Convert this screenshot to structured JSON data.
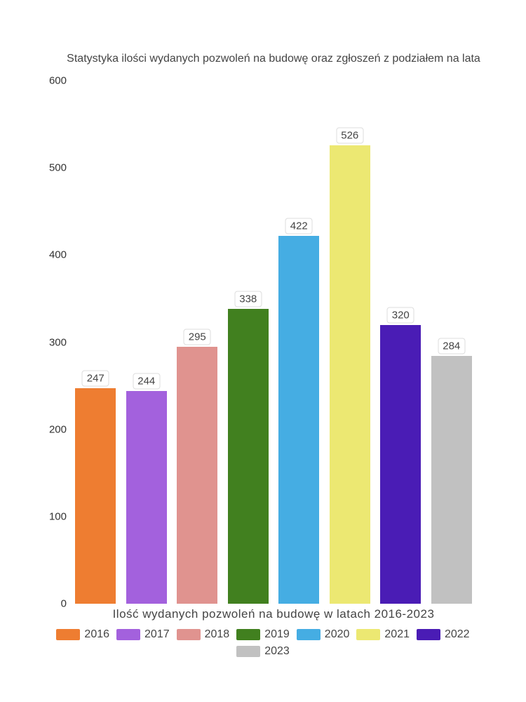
{
  "chart": {
    "type": "bar",
    "title": "Statystyka ilości wydanych pozwoleń na budowę oraz zgłoszeń z podziałem na lata",
    "x_title": "Ilość wydanych pozwoleń na budowę w latach 2016-2023",
    "ylim": [
      0,
      600
    ],
    "ytick_step": 100,
    "yticks": [
      "0",
      "100",
      "200",
      "300",
      "400",
      "500",
      "600"
    ],
    "background_color": "#ffffff",
    "text_color": "#444444",
    "axis_text_color": "#333333",
    "label_box_bg": "#ffffff",
    "label_box_border": "#dddddd",
    "title_fontsize": 16,
    "axis_fontsize": 15,
    "legend_fontsize": 16,
    "bar_gap_ratio": 0.2,
    "series": [
      {
        "year": "2016",
        "value": 247,
        "color": "#ee7d31"
      },
      {
        "year": "2017",
        "value": 244,
        "color": "#a361dd"
      },
      {
        "year": "2018",
        "value": 295,
        "color": "#e0938f"
      },
      {
        "year": "2019",
        "value": 338,
        "color": "#41801f"
      },
      {
        "year": "2020",
        "value": 422,
        "color": "#45ade3"
      },
      {
        "year": "2021",
        "value": 526,
        "color": "#ece872"
      },
      {
        "year": "2022",
        "value": 320,
        "color": "#4a1cb5"
      },
      {
        "year": "2023",
        "value": 284,
        "color": "#c1c1c1"
      }
    ]
  }
}
